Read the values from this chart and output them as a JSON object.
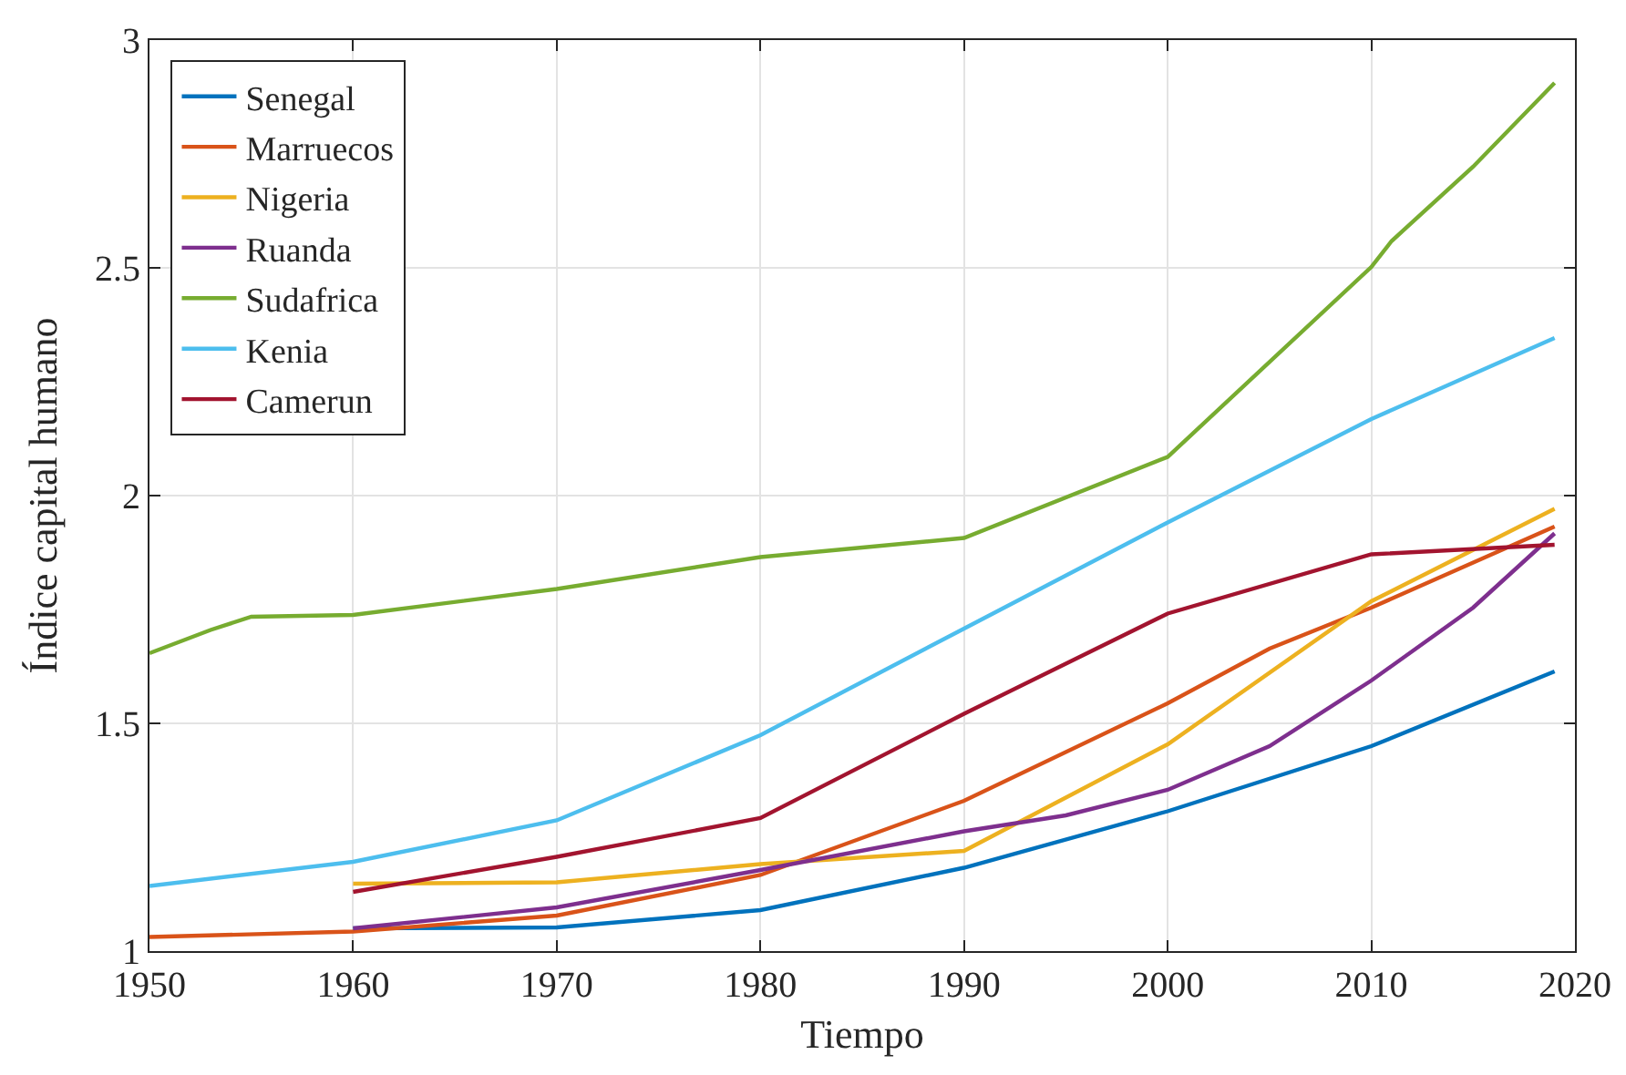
{
  "chart_data": {
    "type": "line",
    "xlabel": "Tiempo",
    "ylabel": "Índice capital humano",
    "xlim": [
      1950,
      2020
    ],
    "xticks": [
      1950,
      1960,
      1970,
      1980,
      1990,
      2000,
      2010,
      2020
    ],
    "ylim": [
      1,
      3
    ],
    "yticks": [
      1,
      1.5,
      2,
      2.5,
      3
    ],
    "grid": true,
    "legend": "top left",
    "marker": "none",
    "line_style": "solid",
    "series": [
      {
        "name": "Senegal",
        "color": "#0072bd",
        "x": [
          1960,
          1970,
          1980,
          1990,
          2000,
          2010,
          2019
        ],
        "values": [
          1.05,
          1.052,
          1.09,
          1.183,
          1.307,
          1.45,
          1.614
        ]
      },
      {
        "name": "Marruecos",
        "color": "#d95319",
        "x": [
          1950,
          1960,
          1970,
          1980,
          1990,
          2000,
          2005,
          2010,
          2019
        ],
        "values": [
          1.031,
          1.043,
          1.078,
          1.167,
          1.33,
          1.544,
          1.664,
          1.754,
          1.932
        ]
      },
      {
        "name": "Nigeria",
        "color": "#edb120",
        "x": [
          1960,
          1970,
          1980,
          1990,
          2000,
          2010,
          2019
        ],
        "values": [
          1.148,
          1.151,
          1.191,
          1.22,
          1.454,
          1.768,
          1.971
        ]
      },
      {
        "name": "Ruanda",
        "color": "#7e2f8e",
        "x": [
          1960,
          1970,
          1980,
          1990,
          1995,
          2000,
          2005,
          2010,
          2015,
          2019
        ],
        "values": [
          1.05,
          1.096,
          1.178,
          1.263,
          1.298,
          1.354,
          1.45,
          1.594,
          1.754,
          1.917
        ]
      },
      {
        "name": "Sudafrica",
        "color": "#77ac30",
        "x": [
          1950,
          1953,
          1955,
          1960,
          1970,
          1980,
          1990,
          2000,
          2010,
          2011,
          2015,
          2019
        ],
        "values": [
          1.654,
          1.705,
          1.734,
          1.738,
          1.795,
          1.865,
          1.907,
          2.085,
          2.502,
          2.559,
          2.722,
          2.906
        ]
      },
      {
        "name": "Kenia",
        "color": "#4dbeee",
        "x": [
          1950,
          1960,
          1970,
          1980,
          1990,
          2000,
          2010,
          2019
        ],
        "values": [
          1.143,
          1.196,
          1.287,
          1.474,
          1.708,
          1.941,
          2.168,
          2.346
        ]
      },
      {
        "name": "Camerun",
        "color": "#a2142f",
        "x": [
          1960,
          1970,
          1980,
          1990,
          2000,
          2010,
          2019
        ],
        "values": [
          1.13,
          1.207,
          1.292,
          1.521,
          1.741,
          1.871,
          1.892
        ]
      }
    ]
  }
}
